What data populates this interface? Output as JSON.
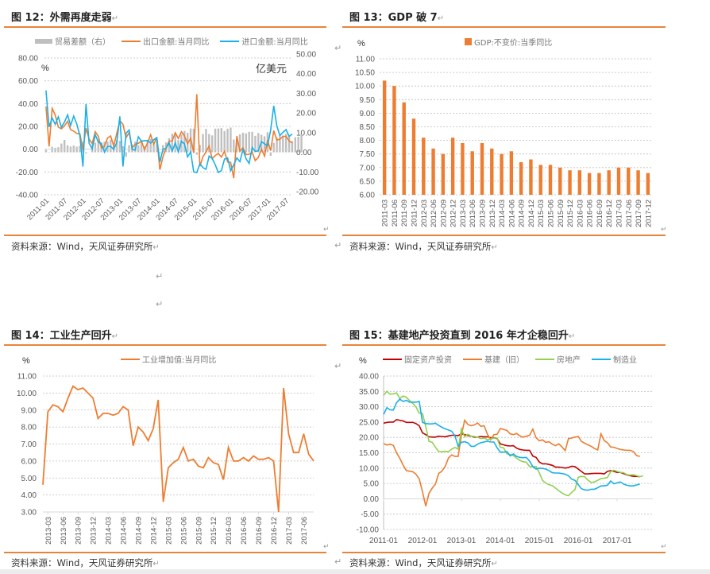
{
  "figures": {
    "fig12": {
      "title": "图 12：外需再度走弱",
      "source": "资料来源：Wind，天风证券研究所",
      "unit_left": "%",
      "unit_right": "亿美元"
    },
    "fig13": {
      "title": "图 13：GDP 破 7",
      "source": "资料来源：Wind，天风证券研究所",
      "unit_left": "%"
    },
    "fig14": {
      "title": "图 14：工业生产回升",
      "source": "资料来源：Wind，天风证券研究所",
      "unit_left": "%"
    },
    "fig15": {
      "title": "图 15：基建地产投资直到 2016 年才企稳回升",
      "source": "资料来源：Wind，天风证券研究所",
      "unit_left": "%"
    }
  },
  "return_mark": "↵",
  "colors": {
    "orange": "#ed7d31",
    "blue": "#1ab0e8",
    "gray_bar": "#bfbfbf",
    "dark_red": "#c00000",
    "green": "#92d050",
    "rule": "#e8843a"
  },
  "chart_data": [
    {
      "id": "fig12",
      "type": "line",
      "title": "外需再度走弱",
      "legend_placement": "top",
      "x_tick_labels": [
        "2011-01",
        "2011-07",
        "2012-01",
        "2012-07",
        "2013-01",
        "2013-07",
        "2014-01",
        "2014-07",
        "2015-01",
        "2015-07",
        "2016-01",
        "2016-07",
        "2017-01",
        "2017-07"
      ],
      "x_start": "2011-01",
      "x_end": "2017-08",
      "ylim_left": [
        -40,
        80
      ],
      "yticks_left": [
        "-40.00",
        "-20.00",
        "0.00",
        "20.00",
        "40.00",
        "60.00",
        "80.00"
      ],
      "ylim_right": [
        -20,
        50
      ],
      "yticks_right": [
        "-20.00",
        "-10.00",
        "0.00",
        "10.00",
        "20.00",
        "30.00",
        "40.00",
        "50.00"
      ],
      "grid": true,
      "series": [
        {
          "name": "贸易差额（右）",
          "kind": "bar",
          "axis": "right",
          "color": "#bfbfbf",
          "values": [
            6.5,
            -0.9,
            14,
            11.4,
            13,
            22.3,
            31.5,
            17.8,
            14.5,
            17,
            14.5,
            16.5,
            27.3,
            -3.1,
            0.2,
            18.5,
            24.3,
            31.7,
            25.2,
            26.7,
            27.8,
            32,
            19.6,
            31.6,
            29.2,
            15.3,
            -11.4,
            18.1,
            20.4,
            27.1,
            17.8,
            28.5,
            15.2,
            31.1,
            33.8,
            25.6,
            31.9,
            -2.3,
            18.4,
            25.2,
            36,
            47.3,
            49.8,
            31,
            45.4,
            54.5,
            49.6,
            60.6,
            60,
            -6.1,
            18.5,
            46.5,
            59.5,
            46.5,
            43,
            60.2,
            60.5,
            61.5,
            54.2,
            60.1,
            63,
            32.6,
            29.9,
            45.6,
            50,
            48.1,
            52.3,
            52.1,
            41.9,
            49.1,
            44.6,
            40.8,
            51.3,
            -9.1,
            23.9,
            38,
            40.8,
            42.8,
            46.7,
            41.7,
            28.5,
            38.2,
            39.7,
            46.4
          ]
        },
        {
          "name": "出口金额:当月同比",
          "kind": "line",
          "axis": "left",
          "color": "#ed7d31",
          "values": [
            37.6,
            2.4,
            35.8,
            29.9,
            19.4,
            17.9,
            20.4,
            24.5,
            17.1,
            15.9,
            13.8,
            13.4,
            -0.5,
            18.4,
            8.9,
            4.9,
            15.3,
            11.3,
            1,
            2.7,
            9.9,
            11.6,
            2.9,
            14.1,
            25,
            21.8,
            10,
            14.7,
            1,
            4.3,
            5.1,
            7.2,
            -0.3,
            5.6,
            12.7,
            4.3,
            10.6,
            -18.1,
            -6.6,
            0.9,
            7,
            7.2,
            14.5,
            9.4,
            15.3,
            11.6,
            4.7,
            9.7,
            -3.3,
            48.3,
            -15,
            -6.4,
            -2.5,
            2.8,
            -8.3,
            -5.5,
            -3.7,
            -6.9,
            -1.7,
            -11.2,
            -11.5,
            -25.4,
            11.5,
            -1.8,
            1.2,
            -4.8,
            -4.4,
            -2.8,
            -10,
            -7.3,
            0.1,
            -6.1,
            7.9,
            -1.3,
            16.4,
            8,
            8.7,
            11.3,
            11.3,
            7.2,
            5.5
          ]
        },
        {
          "name": "进口金额:当月同比",
          "kind": "line",
          "axis": "left",
          "color": "#1ab0e8",
          "values": [
            51.6,
            19.5,
            27.3,
            21.8,
            28.4,
            19.3,
            23.8,
            30.2,
            20.9,
            29,
            22.1,
            11.8,
            -15.3,
            39.6,
            5.3,
            0.3,
            12.7,
            6.3,
            4.7,
            -2.6,
            2.4,
            2.4,
            0,
            6,
            28.8,
            -15.2,
            14.1,
            16.8,
            -0.3,
            -0.7,
            10.9,
            7,
            7.4,
            7.6,
            5.3,
            8.3,
            10,
            -11.3,
            -0.1,
            0.8,
            5.5,
            -1.6,
            5.5,
            -2.4,
            7,
            4.6,
            -6.7,
            -2.4,
            -19.9,
            -20.5,
            -12.7,
            -16.2,
            -17.6,
            -6.1,
            -8.1,
            -13.8,
            -20.4,
            -18.8,
            -8.7,
            -7.6,
            -18.8,
            -13.8,
            -7.6,
            -10.9,
            -0.4,
            -8.4,
            -12.5,
            1.5,
            -1.9,
            -1.4,
            6.7,
            4.7,
            3.1,
            16.7,
            38.1,
            20.3,
            11.9,
            14.8,
            17.2,
            11.2,
            13.3
          ]
        }
      ]
    },
    {
      "id": "fig13",
      "type": "bar",
      "title": "GDP 破 7",
      "legend_placement": "top",
      "categories": [
        "2011-03",
        "2011-06",
        "2011-09",
        "2011-12",
        "2012-03",
        "2012-06",
        "2012-09",
        "2012-12",
        "2013-03",
        "2013-06",
        "2013-09",
        "2013-12",
        "2014-03",
        "2014-06",
        "2014-09",
        "2014-12",
        "2015-03",
        "2015-06",
        "2015-09",
        "2015-12",
        "2016-03",
        "2016-06",
        "2016-09",
        "2016-12",
        "2017-03",
        "2017-06",
        "2017-09",
        "2017-12"
      ],
      "series": [
        {
          "name": "GDP:不变价:当季同比",
          "color": "#ed7d31",
          "values": [
            10.2,
            10.0,
            9.4,
            8.8,
            8.1,
            7.7,
            7.5,
            8.1,
            7.9,
            7.6,
            7.9,
            7.7,
            7.5,
            7.6,
            7.2,
            7.3,
            7.1,
            7.1,
            7.0,
            6.9,
            6.9,
            6.8,
            6.8,
            6.9,
            7.0,
            7.0,
            6.9,
            6.8
          ]
        }
      ],
      "ylim": [
        6.0,
        11.0
      ],
      "yticks": [
        "6.00",
        "6.50",
        "7.00",
        "7.50",
        "8.00",
        "8.50",
        "9.00",
        "9.50",
        "10.00",
        "10.50",
        "11.00"
      ],
      "ylabel": "%",
      "grid": true
    },
    {
      "id": "fig14",
      "type": "line",
      "title": "工业生产回升",
      "legend_placement": "top",
      "x_tick_labels": [
        "2013-03",
        "2013-06",
        "2013-09",
        "2013-12",
        "2014-03",
        "2014-06",
        "2014-09",
        "2014-12",
        "2015-03",
        "2015-06",
        "2015-09",
        "2015-12",
        "2016-03",
        "2016-06",
        "2016-09",
        "2016-12",
        "2017-03",
        "2017-06"
      ],
      "x_start": "2013-02",
      "x_end": "2017-08",
      "series": [
        {
          "name": "工业增加值:当月同比",
          "color": "#ed7d31",
          "values": [
            4.6,
            8.9,
            9.3,
            9.2,
            8.9,
            9.7,
            10.4,
            10.2,
            10.3,
            10.0,
            9.7,
            8.5,
            8.8,
            8.8,
            8.7,
            8.8,
            9.2,
            9.0,
            6.9,
            8.0,
            7.7,
            7.2,
            7.9,
            9.6,
            3.6,
            5.6,
            5.9,
            6.1,
            6.8,
            6.0,
            6.1,
            5.7,
            5.6,
            6.2,
            5.9,
            5.8,
            4.9,
            6.8,
            6.0,
            6.0,
            6.2,
            6.0,
            6.3,
            6.1,
            6.1,
            6.2,
            6.0,
            3.0,
            10.3,
            7.6,
            6.5,
            6.5,
            7.6,
            6.4,
            6.0
          ]
        }
      ],
      "ylim": [
        3.0,
        11.0
      ],
      "yticks": [
        "3.00",
        "4.00",
        "5.00",
        "6.00",
        "7.00",
        "8.00",
        "9.00",
        "10.00",
        "11.00"
      ],
      "ylabel": "%",
      "grid": true
    },
    {
      "id": "fig15",
      "type": "line",
      "title": "基建地产投资直到 2016 年才企稳回升",
      "legend_placement": "top",
      "x_tick_labels": [
        "2011-01",
        "2012-01",
        "2013-01",
        "2014-01",
        "2015-01",
        "2016-01",
        "2017-01"
      ],
      "x_start": "2011-01",
      "x_end": "2017-12",
      "ylim": [
        -10,
        40
      ],
      "yticks": [
        "-10.00",
        "-5.00",
        "0.00",
        "5.00",
        "10.00",
        "15.00",
        "20.00",
        "25.00",
        "30.00",
        "35.00",
        "40.00"
      ],
      "ylabel": "%",
      "grid": true,
      "series": [
        {
          "name": "固定资产投资",
          "color": "#c00000",
          "values": [
            24.6,
            24.9,
            25.0,
            25.0,
            25.8,
            25.6,
            25.4,
            24.9,
            24.9,
            24.9,
            24.5,
            23.8,
            21.5,
            20.9,
            20.2,
            20.1,
            20.1,
            20.4,
            20.3,
            20.2,
            20.5,
            20.7,
            20.7,
            20.6,
            21.2,
            20.9,
            20.6,
            20.4,
            20.1,
            20.1,
            20.3,
            20.2,
            20.2,
            19.9,
            19.9,
            19.6,
            17.9,
            17.6,
            17.3,
            17.2,
            17.3,
            16.5,
            16.1,
            15.9,
            15.8,
            15.8,
            13.9,
            13.5,
            12.0,
            11.4,
            11.4,
            11.2,
            10.9,
            10.3,
            10.3,
            10.2,
            10.0,
            10.2,
            10.6,
            10.5,
            9.7,
            8.9,
            8.1,
            8.1,
            8.2,
            8.3,
            8.3,
            8.3,
            8.1,
            8.9,
            9.2,
            8.9,
            8.6,
            8.6,
            8.2,
            7.8,
            7.5,
            7.3,
            7.3,
            7.2
          ]
        },
        {
          "name": "基建（旧）",
          "color": "#ed7d31",
          "values": [
            18.0,
            17.5,
            17.8,
            17.4,
            15.0,
            13.2,
            11.0,
            9.2,
            9.0,
            8.8,
            8.0,
            6.5,
            2.3,
            -2.4,
            1.8,
            3.5,
            4.8,
            8.3,
            9.0,
            10.6,
            13.3,
            14.3,
            13.8,
            13.8,
            20.7,
            25.6,
            24.2,
            23.8,
            24.1,
            24.7,
            23.6,
            23.8,
            21.1,
            19.2,
            20.9,
            21.0,
            22.9,
            22.6,
            22.3,
            21.2,
            20.9,
            21.3,
            20.5,
            20.1,
            20.4,
            20.7,
            22.7,
            19.9,
            18.9,
            19.2,
            18.4,
            18.6,
            17.8,
            17.3,
            17.9,
            16.9,
            15.7,
            19.6,
            19.8,
            20.1,
            20.3,
            18.7,
            18.1,
            17.6,
            17.1,
            16.4,
            15.9,
            21.2,
            19.0,
            18.3,
            16.9,
            16.8,
            16.4,
            16.1,
            15.9,
            15.8,
            15.8,
            15.4,
            14.1,
            13.8
          ]
        },
        {
          "name": "房地产",
          "color": "#92d050",
          "values": [
            33.7,
            35.0,
            34.1,
            34.2,
            34.5,
            32.7,
            33.5,
            33.1,
            32.0,
            31.1,
            29.9,
            27.9,
            27.8,
            23.5,
            18.7,
            18.4,
            16.8,
            15.4,
            15.3,
            15.5,
            15.4,
            16.2,
            16.7,
            16.2,
            22.8,
            20.2,
            21.0,
            20.4,
            20.3,
            20.1,
            19.6,
            19.8,
            19.3,
            19.5,
            19.8,
            19.8,
            16.8,
            16.6,
            14.7,
            14.4,
            14.1,
            13.2,
            12.5,
            12.1,
            11.9,
            10.5,
            10.4,
            10.5,
            8.5,
            6.0,
            5.1,
            4.6,
            4.3,
            3.5,
            2.6,
            1.9,
            1.3,
            1.0,
            2.1,
            3.0,
            7.0,
            7.3,
            7.2,
            6.1,
            5.3,
            5.5,
            6.0,
            6.6,
            6.7,
            6.9,
            8.8,
            9.3,
            8.9,
            8.6,
            8.5,
            7.9,
            7.7,
            7.9,
            7.5,
            7.2,
            7.5
          ]
        },
        {
          "name": "制造业",
          "color": "#1ab0e8",
          "values": [
            27.5,
            29.7,
            29.0,
            28.9,
            31.3,
            32.5,
            31.7,
            32.1,
            31.5,
            31.5,
            31.5,
            31.7,
            24.9,
            24.5,
            24.4,
            24.4,
            24.6,
            23.9,
            23.3,
            22.8,
            22.4,
            22.0,
            20.5,
            17.1,
            18.4,
            18.6,
            18.2,
            17.1,
            17.1,
            17.8,
            18.3,
            18.5,
            18.8,
            18.5,
            18.5,
            16.6,
            15.2,
            15.2,
            15.4,
            14.0,
            14.6,
            13.8,
            13.5,
            13.4,
            13.5,
            12.3,
            10.5,
            9.7,
            10.0,
            9.9,
            9.7,
            9.2,
            8.5,
            8.4,
            8.4,
            8.2,
            8.0,
            7.5,
            6.4,
            6.0,
            4.6,
            3.3,
            2.9,
            2.8,
            3.1,
            3.1,
            3.6,
            4.2,
            4.2,
            4.4,
            5.8,
            4.9,
            5.2,
            5.5,
            4.8,
            4.4,
            4.2,
            4.2,
            4.5,
            4.8
          ]
        }
      ]
    }
  ]
}
